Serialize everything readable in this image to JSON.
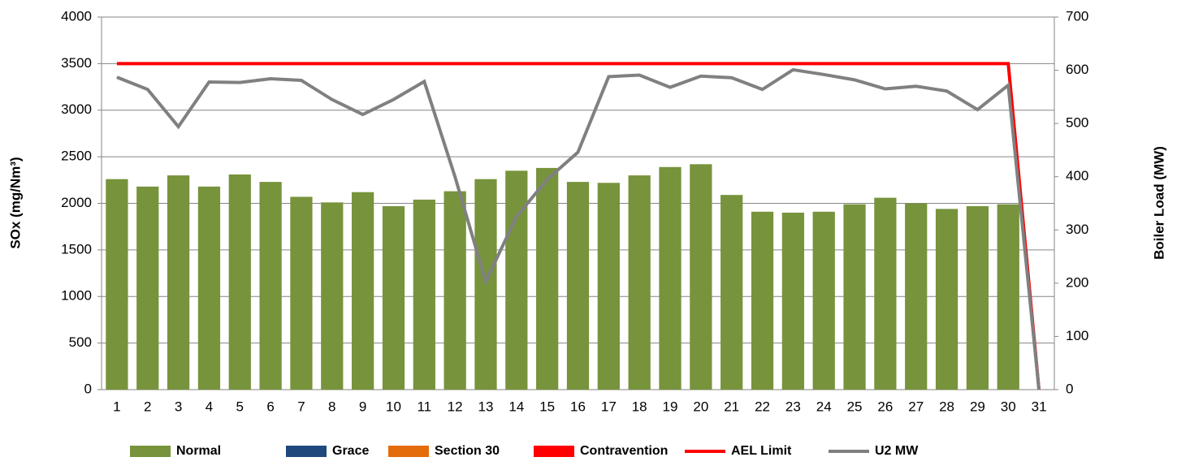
{
  "chart_data": {
    "type": "bar",
    "categories": [
      "1",
      "2",
      "3",
      "4",
      "5",
      "6",
      "7",
      "8",
      "9",
      "10",
      "11",
      "12",
      "13",
      "14",
      "15",
      "16",
      "17",
      "18",
      "19",
      "20",
      "21",
      "22",
      "23",
      "24",
      "25",
      "26",
      "27",
      "28",
      "29",
      "30",
      "31"
    ],
    "series": [
      {
        "name": "Normal",
        "type": "bar",
        "color": "#77933c",
        "values": [
          2260,
          2180,
          2300,
          2180,
          2310,
          2230,
          2070,
          2010,
          2120,
          1970,
          2040,
          2130,
          2260,
          2350,
          2380,
          2230,
          2220,
          2300,
          2390,
          2420,
          2090,
          1910,
          1900,
          1910,
          1990,
          2060,
          2000,
          1940,
          1970,
          1990,
          null
        ]
      },
      {
        "name": "Grace",
        "type": "bar",
        "color": "#1f497d",
        "values": [
          null,
          null,
          null,
          null,
          null,
          null,
          null,
          null,
          null,
          null,
          null,
          null,
          null,
          null,
          null,
          null,
          null,
          null,
          null,
          null,
          null,
          null,
          null,
          null,
          null,
          null,
          null,
          null,
          null,
          null,
          null
        ]
      },
      {
        "name": "Section 30",
        "type": "bar",
        "color": "#e46c0a",
        "values": [
          null,
          null,
          null,
          null,
          null,
          null,
          null,
          null,
          null,
          null,
          null,
          null,
          null,
          null,
          null,
          null,
          null,
          null,
          null,
          null,
          null,
          null,
          null,
          null,
          null,
          null,
          null,
          null,
          null,
          null,
          null
        ]
      },
      {
        "name": "Contravention",
        "type": "bar",
        "color": "#ff0000",
        "values": [
          null,
          null,
          null,
          null,
          null,
          null,
          null,
          null,
          null,
          null,
          null,
          null,
          null,
          null,
          null,
          null,
          null,
          null,
          null,
          null,
          null,
          null,
          null,
          null,
          null,
          null,
          null,
          null,
          null,
          null,
          null
        ]
      },
      {
        "name": "AEL Limit",
        "type": "line",
        "color": "#ff0000",
        "values": [
          3500,
          3500,
          3500,
          3500,
          3500,
          3500,
          3500,
          3500,
          3500,
          3500,
          3500,
          3500,
          3500,
          3500,
          3500,
          3500,
          3500,
          3500,
          3500,
          3500,
          3500,
          3500,
          3500,
          3500,
          3500,
          3500,
          3500,
          3500,
          3500,
          3500,
          0
        ]
      },
      {
        "name": "U2 MW",
        "type": "line",
        "axis": "y2",
        "color": "#808080",
        "values": [
          587,
          564,
          494,
          578,
          577,
          584,
          581,
          545,
          517,
          545,
          579,
          400,
          203,
          325,
          395,
          446,
          588,
          591,
          568,
          589,
          586,
          564,
          601,
          592,
          582,
          565,
          570,
          561,
          526,
          572,
          0
        ]
      }
    ],
    "ylabel": "SOx (mg/Nm³)",
    "y2label": "Boiler Load (MW)",
    "ylim": [
      0,
      4000
    ],
    "yticks": [
      0,
      500,
      1000,
      1500,
      2000,
      2500,
      3000,
      3500,
      4000
    ],
    "y2lim": [
      0,
      700
    ],
    "y2ticks": [
      0,
      100,
      200,
      300,
      400,
      500,
      600,
      700
    ],
    "grid": true,
    "legend": "bottom"
  }
}
